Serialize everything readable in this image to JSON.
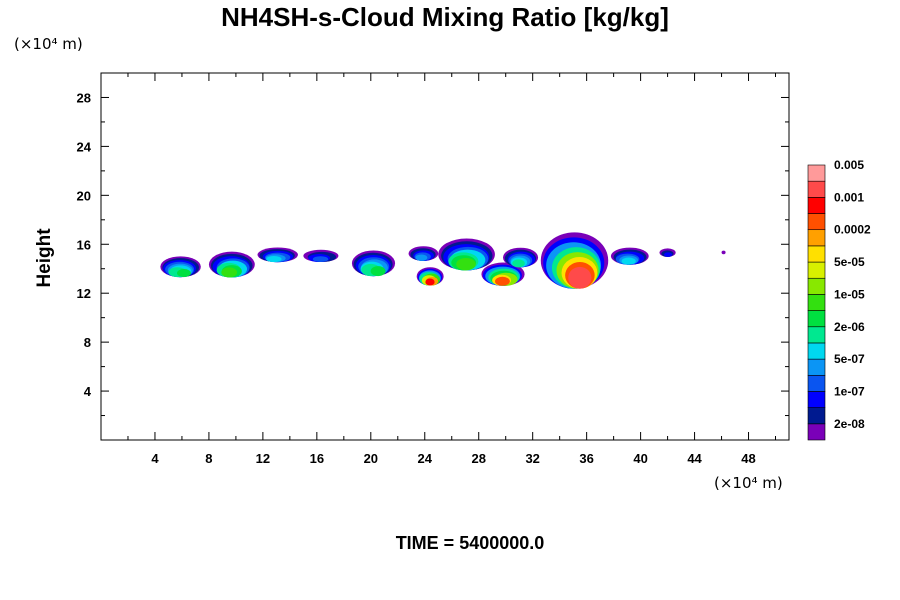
{
  "chart_data": {
    "type": "heatmap",
    "title": "NH4SH-s-Cloud Mixing Ratio [kg/kg]",
    "ylabel": "Height",
    "x_unit": "(×10⁴ m)",
    "y_unit": "(×10⁴ m)",
    "x_ticks": [
      4,
      8,
      12,
      16,
      20,
      24,
      28,
      32,
      36,
      40,
      44,
      48
    ],
    "y_ticks": [
      4,
      8,
      12,
      16,
      20,
      24,
      28
    ],
    "xlim": [
      0,
      51
    ],
    "ylim": [
      0,
      30
    ],
    "colorbar": {
      "colors": [
        "#7a00b8",
        "#001a90",
        "#0000ff",
        "#0a55f0",
        "#0b95f5",
        "#00d8f0",
        "#00e890",
        "#00e040",
        "#33e010",
        "#88e800",
        "#d8f000",
        "#ffe000",
        "#ffa000",
        "#ff5000",
        "#ff0000",
        "#ff4a4a",
        "#ff9a9a"
      ],
      "labels": [
        "2e-08",
        "1e-07",
        "5e-07",
        "2e-06",
        "1e-05",
        "5e-05",
        "0.0002",
        "0.001",
        "0.005"
      ]
    },
    "cloud_blobs": [
      {
        "x": [
          4.4,
          7.4
        ],
        "y": [
          13.4,
          15.1
        ],
        "level": 7
      },
      {
        "x": [
          8.0,
          11.4
        ],
        "y": [
          13.4,
          15.5
        ],
        "level": 8
      },
      {
        "x": [
          11.6,
          14.6
        ],
        "y": [
          14.6,
          15.8
        ],
        "level": 5
      },
      {
        "x": [
          15.0,
          17.6
        ],
        "y": [
          14.6,
          15.6
        ],
        "level": 3
      },
      {
        "x": [
          18.6,
          21.8
        ],
        "y": [
          13.5,
          15.6
        ],
        "level": 7
      },
      {
        "x": [
          22.8,
          25.0
        ],
        "y": [
          14.7,
          15.9
        ],
        "level": 4
      },
      {
        "x": [
          23.4,
          25.4
        ],
        "y": [
          12.7,
          14.2
        ],
        "level": 14
      },
      {
        "x": [
          25.0,
          29.2
        ],
        "y": [
          14.0,
          16.6
        ],
        "level": 8
      },
      {
        "x": [
          28.2,
          31.4
        ],
        "y": [
          12.7,
          14.6
        ],
        "level": 13
      },
      {
        "x": [
          29.8,
          32.4
        ],
        "y": [
          14.2,
          15.8
        ],
        "level": 6
      },
      {
        "x": [
          32.6,
          37.6
        ],
        "y": [
          12.6,
          17.2
        ],
        "level": 15
      },
      {
        "x": [
          37.8,
          40.6
        ],
        "y": [
          14.4,
          15.8
        ],
        "level": 5
      },
      {
        "x": [
          41.4,
          42.6
        ],
        "y": [
          15.0,
          15.7
        ],
        "level": 2
      },
      {
        "x": [
          46.0,
          46.3
        ],
        "y": [
          15.2,
          15.5
        ],
        "level": 0
      }
    ],
    "footer": "TIME = 5400000.0"
  }
}
